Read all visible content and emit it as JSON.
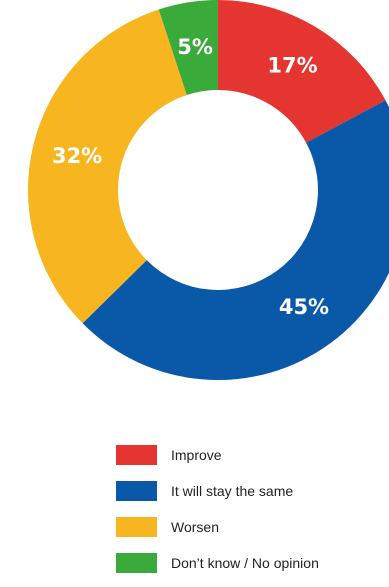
{
  "chart_data": {
    "type": "pie",
    "donut": true,
    "title": "",
    "slices": [
      {
        "label": "Improve",
        "value": 17,
        "display": "17%",
        "color": "#e53530"
      },
      {
        "label": "It will stay the same",
        "value": 45,
        "display": "45%",
        "color": "#0a58a8"
      },
      {
        "label": "Worsen",
        "value": 32,
        "display": "32%",
        "color": "#f7b51f"
      },
      {
        "label": "Don’t know / No opinion",
        "value": 5,
        "display": "5%",
        "color": "#3aaa3a"
      }
    ],
    "legend_placement": "bottom"
  }
}
